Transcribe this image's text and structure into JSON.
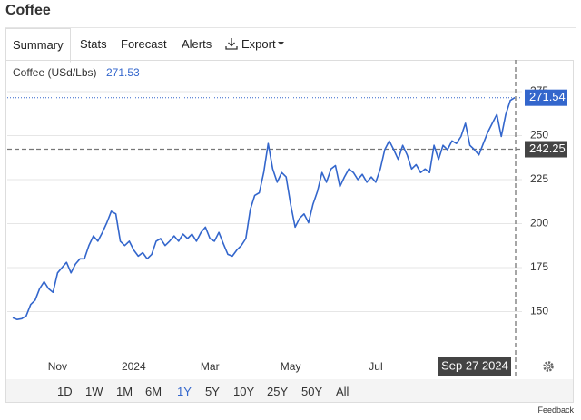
{
  "header": {
    "title": "Coffee"
  },
  "tabs": [
    "Summary",
    "Stats",
    "Forecast",
    "Alerts",
    "Export"
  ],
  "ranges": [
    "1D",
    "1W",
    "1M",
    "6M",
    "1Y",
    "5Y",
    "10Y",
    "25Y",
    "50Y",
    "All"
  ],
  "footer": "Feedback",
  "chart_data": {
    "type": "line",
    "legend_label": "Coffee (USd/Lbs)",
    "legend_value": 271.53,
    "color": "#3366cc",
    "categories": [
      null,
      null,
      null,
      null,
      null,
      null,
      null,
      null,
      null,
      null,
      "Nov",
      null,
      null,
      null,
      null,
      null,
      null,
      null,
      null,
      null,
      null,
      null,
      null,
      null,
      null,
      null,
      null,
      "2024",
      null,
      null,
      null,
      null,
      null,
      null,
      null,
      null,
      null,
      null,
      null,
      null,
      null,
      null,
      null,
      null,
      "Mar",
      null,
      null,
      null,
      null,
      null,
      null,
      null,
      null,
      null,
      null,
      null,
      null,
      null,
      null,
      null,
      null,
      null,
      "May",
      null,
      null,
      null,
      null,
      null,
      null,
      null,
      null,
      null,
      null,
      null,
      null,
      null,
      null,
      null,
      null,
      null,
      null,
      "Jul",
      null,
      null,
      null,
      null,
      null,
      null,
      null,
      null,
      null,
      null,
      null,
      null,
      null,
      null,
      null,
      null,
      null,
      null,
      null,
      null,
      null,
      null,
      null,
      null,
      null,
      null,
      null,
      null,
      null,
      null,
      null
    ],
    "values": [
      146.5,
      145.5,
      146,
      147.5,
      154,
      156.5,
      163,
      167,
      163,
      161,
      172,
      175,
      178,
      172,
      177,
      180,
      180,
      187.5,
      193,
      190,
      195,
      200.5,
      207,
      205.5,
      190,
      187.5,
      190,
      185,
      181.5,
      183.5,
      180,
      182.5,
      190,
      191.5,
      187.5,
      190,
      193,
      190,
      194,
      191.5,
      194,
      190,
      195,
      198,
      191.5,
      190,
      195,
      188.5,
      182.5,
      181.5,
      185,
      187.5,
      191.5,
      208,
      216,
      217.5,
      229,
      245.5,
      231,
      223.5,
      229,
      226.5,
      211,
      198,
      203,
      205.5,
      200.5,
      211,
      218.5,
      229,
      223.5,
      231,
      233,
      221,
      226.5,
      231,
      229,
      225,
      228,
      223.5,
      226.5,
      223.5,
      231,
      242,
      247,
      242,
      236.5,
      244.5,
      239,
      231,
      233.5,
      229,
      231,
      229,
      244.5,
      236.5,
      244.5,
      242,
      247,
      245.5,
      249.5,
      257,
      244.5,
      242,
      239,
      245.5,
      252,
      257,
      262,
      249.5,
      262,
      270,
      271.54
    ],
    "ylim": [
      125,
      292
    ],
    "yticks": [
      150,
      175,
      200,
      225,
      250,
      275
    ],
    "grid": true,
    "crosshair": {
      "date": "Sep 27 2024",
      "value": 242.25
    }
  }
}
